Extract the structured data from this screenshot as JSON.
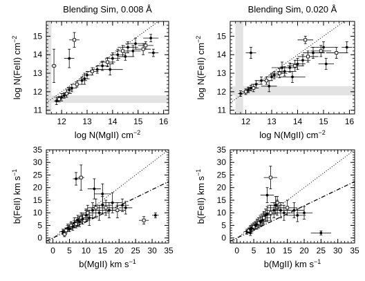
{
  "figure": {
    "panels": [
      "top-left",
      "top-right",
      "bottom-left",
      "bottom-right"
    ]
  },
  "chart_data": [
    {
      "type": "scatter",
      "title": "Blending Sim, 0.008 Å",
      "xlabel": "log N(MgII) cm",
      "xlabel_exp": "−2",
      "ylabel": "log N(FeII) cm",
      "ylabel_exp": "−2",
      "xlim": [
        11.4,
        16.2
      ],
      "ylim": [
        10.8,
        15.8
      ],
      "xticks": [
        12,
        13,
        14,
        15,
        16
      ],
      "yticks": [
        11,
        12,
        13,
        14,
        15
      ],
      "shaded_regions": [
        {
          "axis": "x",
          "from": 11.4,
          "to": 11.6,
          "color": "#e3e3e3"
        },
        {
          "axis": "y",
          "from": 11.4,
          "to": 11.8,
          "color": "#e3e3e3"
        }
      ],
      "reference_lines": [
        {
          "style": "dotted",
          "slope": 1.0,
          "intercept": 0.0
        }
      ],
      "x": [
        11.8,
        11.9,
        12.0,
        12.1,
        12.2,
        12.3,
        12.4,
        12.6,
        12.8,
        13.0,
        13.2,
        13.4,
        13.6,
        13.8,
        14.0,
        14.2,
        14.4,
        14.6,
        14.9,
        15.3,
        15.6,
        12.3,
        12.5,
        14.5,
        15.5,
        15.2,
        14.8,
        13.9,
        11.7,
        12.9
      ],
      "y": [
        11.5,
        11.6,
        11.7,
        11.8,
        11.9,
        12.1,
        12.2,
        12.4,
        12.6,
        12.9,
        13.1,
        13.2,
        13.4,
        13.6,
        13.8,
        14.0,
        14.2,
        14.4,
        14.6,
        14.5,
        14.1,
        13.8,
        14.8,
        13.9,
        14.9,
        14.3,
        14.2,
        13.2,
        13.4,
        12.7
      ],
      "xerr": [
        0.1,
        0.1,
        0.15,
        0.1,
        0.2,
        0.15,
        0.2,
        0.15,
        0.2,
        0.2,
        0.25,
        0.2,
        0.25,
        0.3,
        0.3,
        0.3,
        0.3,
        0.4,
        0.4,
        0.3,
        0.2,
        0.2,
        0.2,
        0.3,
        0.3,
        0.3,
        0.3,
        0.5,
        0.1,
        0.2
      ],
      "yerr": [
        0.2,
        0.15,
        0.2,
        0.15,
        0.2,
        0.15,
        0.2,
        0.15,
        0.2,
        0.2,
        0.2,
        0.2,
        0.25,
        0.25,
        0.3,
        0.3,
        0.3,
        0.3,
        0.3,
        0.2,
        0.2,
        0.5,
        0.4,
        0.2,
        0.2,
        0.3,
        0.3,
        0.3,
        0.9,
        0.3
      ]
    },
    {
      "type": "scatter",
      "title": "Blending Sim, 0.020 Å",
      "xlabel": "log N(MgII) cm",
      "xlabel_exp": "−2",
      "ylabel": "log N(FeII) cm",
      "ylabel_exp": "−2",
      "xlim": [
        11.4,
        16.2
      ],
      "ylim": [
        10.8,
        15.8
      ],
      "xticks": [
        12,
        13,
        14,
        15,
        16
      ],
      "yticks": [
        11,
        12,
        13,
        14,
        15
      ],
      "shaded_regions": [
        {
          "axis": "x",
          "from": 11.6,
          "to": 11.9,
          "color": "#e3e3e3"
        },
        {
          "axis": "y",
          "from": 11.8,
          "to": 12.3,
          "color": "#e3e3e3"
        }
      ],
      "reference_lines": [
        {
          "style": "dotted",
          "slope": 1.0,
          "intercept": 0.0
        }
      ],
      "x": [
        11.8,
        12.0,
        12.1,
        12.2,
        12.3,
        12.4,
        12.6,
        12.8,
        13.0,
        13.1,
        13.3,
        13.5,
        13.7,
        13.9,
        14.0,
        14.2,
        14.4,
        14.6,
        15.0,
        15.5,
        15.9,
        12.2,
        14.3,
        15.1,
        13.4,
        14.9,
        13.8,
        12.9
      ],
      "y": [
        11.9,
        12.0,
        12.1,
        12.2,
        12.2,
        12.4,
        12.6,
        12.6,
        12.8,
        12.9,
        13.0,
        13.1,
        13.3,
        13.4,
        13.5,
        13.7,
        13.9,
        14.1,
        14.4,
        14.1,
        14.4,
        14.1,
        14.8,
        13.5,
        13.3,
        14.2,
        12.8,
        12.3
      ],
      "xerr": [
        0.1,
        0.15,
        0.1,
        0.15,
        0.2,
        0.2,
        0.2,
        0.2,
        0.25,
        0.2,
        0.3,
        0.3,
        0.3,
        0.3,
        0.3,
        0.3,
        0.4,
        0.4,
        0.5,
        0.4,
        0.2,
        0.2,
        0.3,
        0.3,
        0.4,
        0.4,
        0.5,
        0.3
      ],
      "yerr": [
        0.15,
        0.15,
        0.15,
        0.15,
        0.2,
        0.2,
        0.2,
        0.2,
        0.2,
        0.2,
        0.25,
        0.25,
        0.25,
        0.3,
        0.3,
        0.3,
        0.3,
        0.3,
        0.3,
        0.3,
        0.3,
        0.3,
        0.2,
        0.3,
        0.3,
        0.3,
        0.3,
        0.3
      ]
    },
    {
      "type": "scatter",
      "title": "",
      "xlabel": "b(MgII) km s",
      "xlabel_exp": "−1",
      "ylabel": "b(FeII) km s",
      "ylabel_exp": "−1",
      "xlim": [
        -2,
        35
      ],
      "ylim": [
        -2,
        35
      ],
      "xticks": [
        0,
        5,
        10,
        15,
        20,
        25,
        30,
        35
      ],
      "yticks": [
        0,
        5,
        10,
        15,
        20,
        25,
        30,
        35
      ],
      "shaded_regions": [],
      "reference_lines": [
        {
          "style": "dotted",
          "slope": 1.0,
          "intercept": 0.0
        },
        {
          "style": "dashdot",
          "slope": 0.64,
          "intercept": 0.0
        }
      ],
      "x": [
        3.0,
        4.0,
        4.5,
        5.0,
        5.5,
        6.0,
        6.5,
        7.0,
        7.5,
        8.0,
        8.5,
        9.0,
        10.0,
        10.5,
        11.0,
        12.0,
        13.0,
        14.0,
        15.0,
        16.0,
        17.0,
        18.0,
        19.5,
        21.0,
        22.0,
        27.5,
        31.0,
        7.0,
        8.5,
        12.5,
        15.0,
        3.5
      ],
      "y": [
        2.5,
        3.0,
        4.0,
        3.5,
        5.0,
        4.5,
        6.0,
        5.5,
        7.0,
        6.5,
        8.0,
        7.5,
        9.0,
        10.0,
        8.0,
        11.0,
        12.0,
        10.0,
        13.0,
        12.0,
        11.0,
        14.0,
        11.0,
        13.0,
        12.0,
        7.0,
        9.0,
        23.5,
        24.0,
        19.5,
        17.5,
        1.5
      ],
      "xerr": [
        1.0,
        1.0,
        1.0,
        1.0,
        1.5,
        1.5,
        1.5,
        1.5,
        1.5,
        1.5,
        2.0,
        2.0,
        2.0,
        2.0,
        2.5,
        2.5,
        2.5,
        3.0,
        3.0,
        2.5,
        3.0,
        3.0,
        2.5,
        2.0,
        2.0,
        1.5,
        1.0,
        1.0,
        1.0,
        2.0,
        2.5,
        0.8
      ],
      "yerr": [
        1.0,
        1.0,
        1.5,
        1.0,
        1.5,
        1.5,
        2.0,
        1.5,
        2.0,
        2.0,
        2.0,
        2.0,
        2.5,
        3.0,
        3.0,
        3.0,
        3.5,
        3.0,
        3.5,
        3.0,
        3.0,
        4.0,
        3.0,
        2.5,
        2.5,
        1.5,
        1.0,
        2.5,
        5.0,
        4.0,
        4.0,
        1.0
      ]
    },
    {
      "type": "scatter",
      "title": "",
      "xlabel": "b(MgII) km s",
      "xlabel_exp": "−1",
      "ylabel": "b(FeII) km s",
      "ylabel_exp": "−1",
      "xlim": [
        -2,
        35
      ],
      "ylim": [
        -2,
        35
      ],
      "xticks": [
        0,
        5,
        10,
        15,
        20,
        25,
        30,
        35
      ],
      "yticks": [
        0,
        5,
        10,
        15,
        20,
        25,
        30,
        35
      ],
      "shaded_regions": [],
      "reference_lines": [
        {
          "style": "dotted",
          "slope": 1.0,
          "intercept": 0.0
        },
        {
          "style": "dashdot",
          "slope": 0.64,
          "intercept": 0.0
        }
      ],
      "x": [
        3.0,
        3.5,
        4.0,
        4.5,
        5.0,
        5.5,
        6.0,
        6.5,
        7.0,
        7.5,
        8.0,
        8.5,
        9.0,
        10.0,
        11.0,
        11.5,
        12.0,
        13.0,
        14.0,
        15.0,
        17.0,
        20.0,
        10.0,
        25.0,
        9.0,
        12.0,
        18.0,
        4.0
      ],
      "y": [
        2.5,
        3.0,
        3.5,
        4.0,
        4.5,
        5.0,
        5.5,
        6.0,
        6.5,
        7.0,
        8.0,
        9.0,
        9.5,
        10.0,
        11.0,
        13.0,
        12.0,
        11.0,
        10.0,
        12.0,
        11.0,
        10.0,
        24.0,
        2.0,
        17.0,
        14.0,
        9.0,
        2.0
      ],
      "xerr": [
        1.0,
        1.0,
        1.0,
        1.0,
        1.5,
        1.5,
        1.5,
        1.5,
        2.0,
        2.0,
        2.0,
        2.0,
        2.0,
        2.5,
        2.5,
        2.5,
        3.0,
        3.0,
        3.0,
        3.0,
        3.0,
        2.5,
        2.0,
        3.0,
        2.0,
        2.0,
        2.5,
        0.8
      ],
      "yerr": [
        1.0,
        1.0,
        1.5,
        1.5,
        1.5,
        1.5,
        2.0,
        2.0,
        2.0,
        2.0,
        2.5,
        2.5,
        3.0,
        3.0,
        3.0,
        3.5,
        3.0,
        3.0,
        3.0,
        3.0,
        3.0,
        2.5,
        4.5,
        0.8,
        3.0,
        2.5,
        2.5,
        1.0
      ]
    }
  ]
}
